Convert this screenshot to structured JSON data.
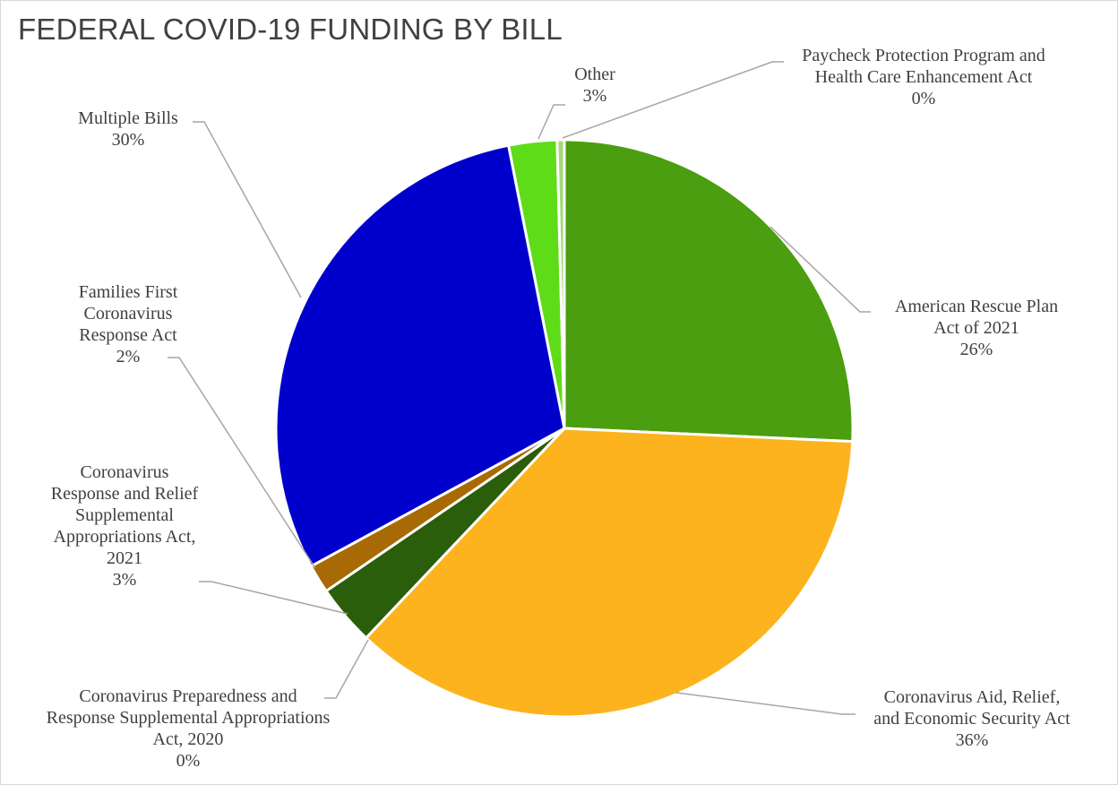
{
  "chart_data": {
    "type": "pie",
    "title": "FEDERAL COVID-19 FUNDING BY BILL",
    "slices": [
      {
        "label_lines": [
          "American Rescue Plan",
          "Act of 2021"
        ],
        "pct_label": "26%",
        "value": 25.7,
        "color": "#4a9e10"
      },
      {
        "label_lines": [
          "Coronavirus Aid, Relief,",
          "and Economic Security Act"
        ],
        "pct_label": "36%",
        "value": 36.3,
        "color": "#fdb31d"
      },
      {
        "label_lines": [
          "Coronavirus Preparedness and",
          "Response Supplemental Appropriations",
          "Act, 2020"
        ],
        "pct_label": "0%",
        "value": 0.0,
        "color": "#1f3d0c"
      },
      {
        "label_lines": [
          "Coronavirus",
          "Response and Relief",
          "Supplemental",
          "Appropriations Act,",
          "2021"
        ],
        "pct_label": "3%",
        "value": 3.4,
        "color": "#2a5e0a"
      },
      {
        "label_lines": [
          "Families First",
          "Coronavirus",
          "Response Act"
        ],
        "pct_label": "2%",
        "value": 1.6,
        "color": "#a86a05"
      },
      {
        "label_lines": [
          "Multiple Bills"
        ],
        "pct_label": "30%",
        "value": 29.8,
        "color": "#0000cc"
      },
      {
        "label_lines": [
          "Other"
        ],
        "pct_label": "3%",
        "value": 2.7,
        "color": "#5fdc18"
      },
      {
        "label_lines": [
          "Paycheck Protection Program and",
          "Health Care Enhancement Act"
        ],
        "pct_label": "0%",
        "value": 0.4,
        "color": "#a3d97a"
      }
    ]
  }
}
